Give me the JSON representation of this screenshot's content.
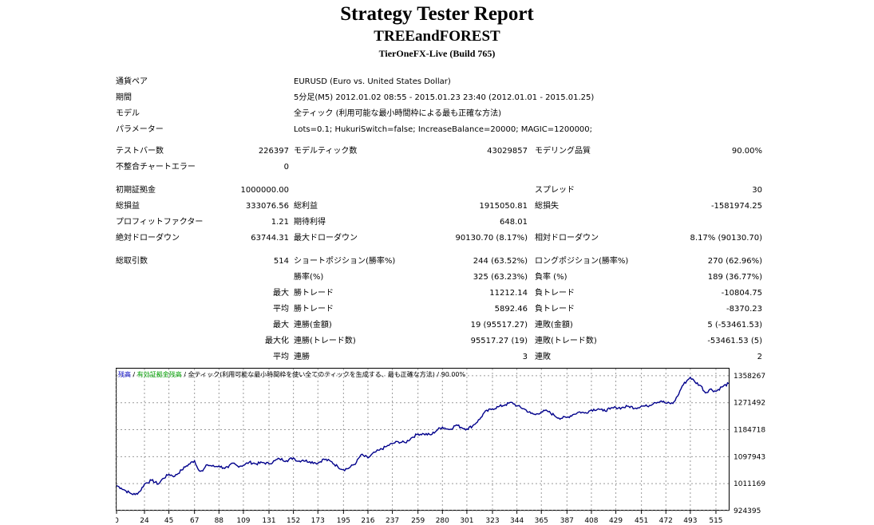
{
  "header": {
    "title": "Strategy Tester Report",
    "expert": "TREEandFOREST",
    "server": "TierOneFX-Live (Build 765)"
  },
  "settings": {
    "symbol_label": "通貨ペア",
    "symbol_value": "EURUSD (Euro vs. United States Dollar)",
    "period_label": "期間",
    "period_value": "5分足(M5) 2012.01.02 08:55 - 2015.01.23 23:40 (2012.01.01 - 2015.01.25)",
    "model_label": "モデル",
    "model_value": "全ティック (利用可能な最小時間枠による最も正確な方法)",
    "params_label": "パラメーター",
    "params_value": "Lots=0.1; HukuriSwitch=false; IncreaseBalance=20000; MAGIC=1200000;"
  },
  "bars": {
    "bars_label": "テストバー数",
    "bars_value": "226397",
    "ticks_label": "モデルティック数",
    "ticks_value": "43029857",
    "quality_label": "モデリング品質",
    "quality_value": "90.00%",
    "errors_label": "不整合チャートエラー",
    "errors_value": "0"
  },
  "results": {
    "deposit_label": "初期証拠金",
    "deposit_value": "1000000.00",
    "spread_label": "スプレッド",
    "spread_value": "30",
    "netprofit_label": "総損益",
    "netprofit_value": "333076.56",
    "grossprofit_label": "総利益",
    "grossprofit_value": "1915050.81",
    "grossloss_label": "総損失",
    "grossloss_value": "-1581974.25",
    "pf_label": "プロフィットファクター",
    "pf_value": "1.21",
    "payoff_label": "期待利得",
    "payoff_value": "648.01",
    "absdd_label": "絶対ドローダウン",
    "absdd_value": "63744.31",
    "maxdd_label": "最大ドローダウン",
    "maxdd_value": "90130.70 (8.17%)",
    "reldd_label": "相対ドローダウン",
    "reldd_value": "8.17% (90130.70)"
  },
  "trades": {
    "total_label": "総取引数",
    "total_value": "514",
    "short_label": "ショートポジション(勝率%)",
    "short_value": "244 (63.52%)",
    "long_label": "ロングポジション(勝率%)",
    "long_value": "270 (62.96%)",
    "win_label": "勝率(%)",
    "win_value": "325 (63.23%)",
    "loss_label": "負率 (%)",
    "loss_value": "189 (36.77%)",
    "max_label": "最大",
    "avg_label": "平均",
    "maxi_label": "最大化",
    "largest_win_label": "勝トレード",
    "largest_win_value": "11212.14",
    "largest_loss_label": "負トレード",
    "largest_loss_value": "-10804.75",
    "avg_win_label": "勝トレード",
    "avg_win_value": "5892.46",
    "avg_loss_label": "負トレード",
    "avg_loss_value": "-8370.23",
    "consec_wins_label": "連勝(金額)",
    "consec_wins_value": "19 (95517.27)",
    "consec_losses_label": "連敗(金額)",
    "consec_losses_value": "5 (-53461.53)",
    "consec_profit_label": "連勝(トレード数)",
    "consec_profit_value": "95517.27 (19)",
    "consec_loss_label": "連敗(トレード数)",
    "consec_loss_value": "-53461.53 (5)",
    "avg_consec_wins_label": "連勝",
    "avg_consec_wins_value": "3",
    "avg_consec_losses_label": "連敗",
    "avg_consec_losses_value": "2"
  },
  "chart_legend": {
    "balance": "残高",
    "sep1": " / ",
    "equity": "有効証拠金残高",
    "sep2": " / ",
    "desc": "全ティック(利用可能な最小時間枠を使い全てのティックを生成する、最も正確な方法) / 90.00%",
    "balance_color": "#0000c0",
    "equity_color": "#00a000"
  },
  "chart_data": {
    "type": "line",
    "title": "",
    "xlabel": "",
    "ylabel": "",
    "xlim": [
      0,
      526
    ],
    "ylim": [
      924395,
      1381000
    ],
    "x_ticks": [
      0,
      24,
      45,
      67,
      88,
      109,
      131,
      152,
      173,
      195,
      216,
      237,
      259,
      280,
      301,
      323,
      344,
      365,
      387,
      408,
      429,
      451,
      472,
      493,
      515
    ],
    "y_ticks": [
      924395,
      1011169,
      1097943,
      1184718,
      1271492,
      1358267
    ],
    "grid": true,
    "series": [
      {
        "color": "#00008b",
        "x": [
          0,
          4,
          8,
          12,
          16,
          20,
          24,
          30,
          36,
          40,
          45,
          50,
          56,
          60,
          67,
          70,
          74,
          78,
          84,
          88,
          92,
          96,
          100,
          104,
          109,
          114,
          120,
          126,
          131,
          136,
          140,
          146,
          152,
          156,
          160,
          166,
          170,
          173,
          178,
          184,
          190,
          195,
          200,
          206,
          210,
          216,
          222,
          226,
          232,
          237,
          242,
          248,
          254,
          259,
          264,
          270,
          276,
          280,
          286,
          292,
          296,
          301,
          306,
          312,
          316,
          323,
          328,
          334,
          340,
          344,
          350,
          356,
          360,
          365,
          370,
          376,
          380,
          387,
          392,
          398,
          402,
          408,
          414,
          418,
          424,
          429,
          434,
          440,
          446,
          451,
          456,
          462,
          468,
          472,
          478,
          482,
          486,
          490,
          493,
          497,
          502,
          506,
          510,
          515,
          520,
          526
        ],
        "y": [
          1005000,
          997000,
          988000,
          980000,
          976000,
          986000,
          1010000,
          1022000,
          1010000,
          1028000,
          1041000,
          1035000,
          1055000,
          1068000,
          1085000,
          1058000,
          1052000,
          1072000,
          1066000,
          1068000,
          1062000,
          1063000,
          1077000,
          1068000,
          1070000,
          1080000,
          1075000,
          1079000,
          1075000,
          1085000,
          1091000,
          1085000,
          1094000,
          1083000,
          1087000,
          1082000,
          1079000,
          1077000,
          1090000,
          1083000,
          1066000,
          1056000,
          1062000,
          1079000,
          1104000,
          1094000,
          1112000,
          1119000,
          1131000,
          1140000,
          1146000,
          1143000,
          1160000,
          1171000,
          1171000,
          1168000,
          1185000,
          1193000,
          1185000,
          1200000,
          1192000,
          1187000,
          1197000,
          1218000,
          1240000,
          1252000,
          1258000,
          1265000,
          1272000,
          1261000,
          1252000,
          1237000,
          1233000,
          1242000,
          1245000,
          1231000,
          1222000,
          1224000,
          1233000,
          1242000,
          1238000,
          1248000,
          1252000,
          1245000,
          1251000,
          1256000,
          1255000,
          1260000,
          1254000,
          1261000,
          1260000,
          1272000,
          1277000,
          1270000,
          1269000,
          1292000,
          1325000,
          1342000,
          1353000,
          1338000,
          1326000,
          1303000,
          1315000,
          1308000,
          1322000,
          1333000
        ]
      }
    ]
  }
}
